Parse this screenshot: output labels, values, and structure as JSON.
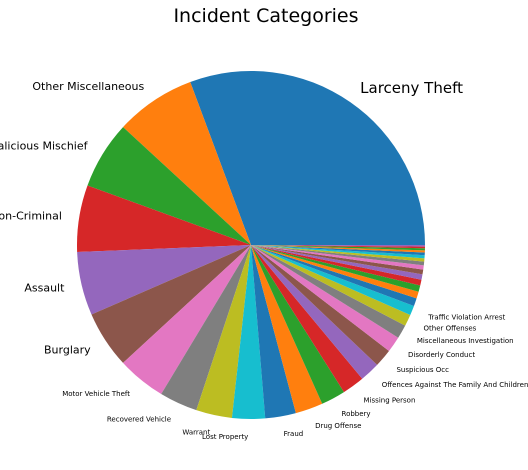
{
  "chart_data": {
    "type": "pie",
    "title": "Incident Categories",
    "categories": [
      "Larceny Theft",
      "Other Miscellaneous",
      "Malicious Mischief",
      "Non-Criminal",
      "Assault",
      "Burglary",
      "Motor Vehicle Theft",
      "Recovered Vehicle",
      "Warrant",
      "Lost Property",
      "Fraud",
      "Drug Offense",
      "Robbery",
      "Missing Person",
      "Offences Against The Family And Children",
      "Suspicious Occ",
      "Disorderly Conduct",
      "Miscellaneous Investigation",
      "Other Offenses",
      "Traffic Violation Arrest",
      "",
      "",
      "",
      "",
      "",
      "",
      "",
      "",
      "",
      "",
      "",
      "",
      "",
      "",
      ""
    ],
    "values": [
      31.2,
      7.6,
      6.4,
      6.3,
      6.0,
      5.4,
      4.6,
      3.6,
      3.4,
      3.1,
      2.9,
      2.6,
      2.3,
      2.1,
      1.9,
      1.7,
      1.5,
      1.3,
      1.1,
      0.9,
      0.75,
      0.65,
      0.6,
      0.55,
      0.5,
      0.45,
      0.4,
      0.35,
      0.3,
      0.3,
      0.25,
      0.2,
      0.2,
      0.15,
      0.15
    ],
    "colors": [
      "#1f77b4",
      "#ff7f0e",
      "#2ca02c",
      "#d62728",
      "#9467bd",
      "#8c564b",
      "#e377c2",
      "#7f7f7f",
      "#bcbd22",
      "#17becf"
    ],
    "start_angle_deg": 0,
    "direction": "counterclockwise",
    "legend": "none"
  }
}
